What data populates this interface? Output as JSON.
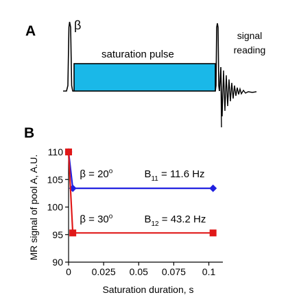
{
  "panel_a": {
    "letter": "A",
    "beta_label": "β",
    "pulse_label": "saturation pulse",
    "signal_label_line1": "signal",
    "signal_label_line2": "reading",
    "colors": {
      "pulse_fill": "#1ab8e8",
      "stroke": "#000000"
    }
  },
  "panel_b": {
    "letter": "B"
  },
  "chart_data": {
    "type": "line",
    "xlabel": "Saturation duration, s",
    "ylabel": "MR signal of pool A, A.U.",
    "xlim": [
      0,
      0.11
    ],
    "ylim": [
      90,
      110
    ],
    "x_ticks": [
      "0",
      "0.025",
      "0.05",
      "0.075",
      "0.1"
    ],
    "x_tick_values": [
      0,
      0.025,
      0.05,
      0.075,
      0.1
    ],
    "y_ticks": [
      "90",
      "95",
      "100",
      "105",
      "110"
    ],
    "y_tick_values": [
      90,
      95,
      100,
      105,
      110
    ],
    "grid": false,
    "series": [
      {
        "color": "#2020e0",
        "marker": "diamond",
        "x": [
          0,
          0.003,
          0.103
        ],
        "y": [
          110,
          103.4,
          103.4
        ]
      },
      {
        "color": "#e01818",
        "marker": "square",
        "x": [
          0,
          0.003,
          0.103
        ],
        "y": [
          110,
          95.3,
          95.3
        ]
      }
    ],
    "annotations": [
      {
        "text": "β = 20",
        "sup": "o",
        "x": 0.008,
        "y": 105.4
      },
      {
        "text": "B",
        "sub": "11",
        "rest": " = 11.6 Hz",
        "x": 0.054,
        "y": 105.4
      },
      {
        "text": "β = 30",
        "sup": "o",
        "x": 0.008,
        "y": 97.2
      },
      {
        "text": "B",
        "sub": "12",
        "rest": " = 43.2 Hz",
        "x": 0.054,
        "y": 97.2
      }
    ]
  }
}
